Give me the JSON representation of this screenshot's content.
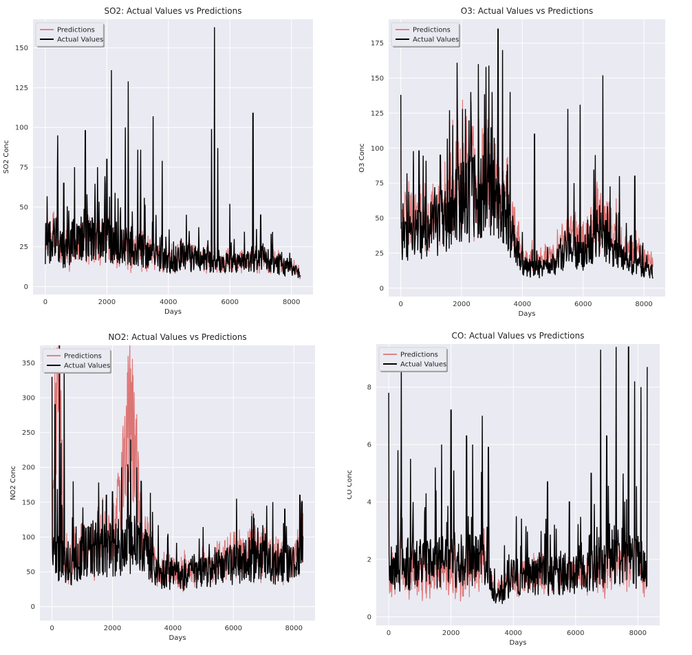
{
  "colors": {
    "predictions": "#d9605f",
    "actual": "#000000",
    "plot_bg": "#eaeaf2",
    "grid": "#ffffff"
  },
  "chart_data": [
    {
      "type": "line",
      "title": "SO2: Actual Values vs Predictions",
      "xlabel": "Days",
      "ylabel": "SO2 Conc",
      "xlim": [
        -400,
        8700
      ],
      "ylim": [
        -5,
        168
      ],
      "xticks": [
        0,
        2000,
        4000,
        6000,
        8000
      ],
      "yticks": [
        0,
        25,
        50,
        75,
        100,
        125,
        150
      ],
      "legend": "top-left",
      "grid": true,
      "series": [
        {
          "name": "Predictions",
          "color": "#d9605f",
          "approx_points": [
            [
              0,
              25
            ],
            [
              200,
              30
            ],
            [
              500,
              22
            ],
            [
              1000,
              25
            ],
            [
              1500,
              26
            ],
            [
              2000,
              25
            ],
            [
              2500,
              24
            ],
            [
              3000,
              22
            ],
            [
              3500,
              18
            ],
            [
              4000,
              15
            ],
            [
              4500,
              18
            ],
            [
              5000,
              16
            ],
            [
              5500,
              15
            ],
            [
              6000,
              14
            ],
            [
              6500,
              14
            ],
            [
              7000,
              16
            ],
            [
              7500,
              14
            ],
            [
              8000,
              11
            ],
            [
              8300,
              7
            ]
          ]
        },
        {
          "name": "Actual Values",
          "color": "#000000",
          "spikes": [
            [
              400,
              95
            ],
            [
              600,
              65
            ],
            [
              950,
              75
            ],
            [
              1300,
              98
            ],
            [
              1700,
              75
            ],
            [
              2000,
              80
            ],
            [
              2150,
              136
            ],
            [
              2600,
              100
            ],
            [
              2700,
              129
            ],
            [
              3000,
              86
            ],
            [
              3100,
              86
            ],
            [
              3500,
              107
            ],
            [
              3800,
              79
            ],
            [
              5400,
              99
            ],
            [
              5500,
              163
            ],
            [
              5600,
              87
            ],
            [
              6000,
              52
            ],
            [
              6750,
              109
            ],
            [
              7000,
              45
            ]
          ],
          "baseline": [
            [
              0,
              22
            ],
            [
              300,
              28
            ],
            [
              600,
              20
            ],
            [
              1000,
              27
            ],
            [
              1500,
              28
            ],
            [
              2000,
              26
            ],
            [
              2500,
              25
            ],
            [
              3000,
              22
            ],
            [
              3500,
              18
            ],
            [
              4000,
              14
            ],
            [
              4500,
              17
            ],
            [
              5000,
              15
            ],
            [
              5500,
              15
            ],
            [
              6000,
              13
            ],
            [
              6500,
              14
            ],
            [
              7000,
              17
            ],
            [
              7500,
              13
            ],
            [
              8000,
              10
            ],
            [
              8300,
              6
            ]
          ]
        }
      ]
    },
    {
      "type": "line",
      "title": "O3: Actual Values vs Predictions",
      "xlabel": "Days",
      "ylabel": "O3 Conc",
      "xlim": [
        -400,
        8700
      ],
      "ylim": [
        -6,
        192
      ],
      "xticks": [
        0,
        2000,
        4000,
        6000,
        8000
      ],
      "yticks": [
        0,
        25,
        50,
        75,
        100,
        125,
        150,
        175
      ],
      "legend": "top-left",
      "grid": true,
      "series": [
        {
          "name": "Predictions",
          "color": "#d9605f",
          "approx_points": [
            [
              0,
              40
            ],
            [
              500,
              45
            ],
            [
              1000,
              45
            ],
            [
              1500,
              55
            ],
            [
              2000,
              70
            ],
            [
              2500,
              75
            ],
            [
              3000,
              70
            ],
            [
              3500,
              55
            ],
            [
              4000,
              20
            ],
            [
              4500,
              18
            ],
            [
              5000,
              20
            ],
            [
              5500,
              35
            ],
            [
              6000,
              30
            ],
            [
              6500,
              45
            ],
            [
              7000,
              35
            ],
            [
              7500,
              25
            ],
            [
              8000,
              20
            ],
            [
              8300,
              15
            ]
          ]
        },
        {
          "name": "Actual Values",
          "color": "#000000",
          "spikes": [
            [
              0,
              138
            ],
            [
              200,
              82
            ],
            [
              600,
              98
            ],
            [
              1300,
              95
            ],
            [
              1850,
              161
            ],
            [
              2300,
              140
            ],
            [
              2550,
              160
            ],
            [
              2800,
              158
            ],
            [
              3000,
              140
            ],
            [
              3200,
              185
            ],
            [
              3350,
              170
            ],
            [
              3600,
              140
            ],
            [
              4400,
              110
            ],
            [
              5500,
              128
            ],
            [
              5700,
              75
            ],
            [
              5900,
              131
            ],
            [
              6400,
              95
            ],
            [
              6650,
              152
            ],
            [
              7200,
              80
            ],
            [
              7700,
              80
            ]
          ],
          "baseline": [
            [
              0,
              30
            ],
            [
              500,
              35
            ],
            [
              1000,
              38
            ],
            [
              1500,
              45
            ],
            [
              2000,
              55
            ],
            [
              2500,
              60
            ],
            [
              3000,
              58
            ],
            [
              3500,
              45
            ],
            [
              4000,
              15
            ],
            [
              4500,
              12
            ],
            [
              5000,
              14
            ],
            [
              5500,
              25
            ],
            [
              6000,
              22
            ],
            [
              6500,
              35
            ],
            [
              7000,
              25
            ],
            [
              7500,
              18
            ],
            [
              8000,
              12
            ],
            [
              8300,
              10
            ]
          ]
        }
      ]
    },
    {
      "type": "line",
      "title": "NO2: Actual Values vs Predictions",
      "xlabel": "Days",
      "ylabel": "NO2 Conc",
      "xlim": [
        -400,
        8700
      ],
      "ylim": [
        -20,
        375
      ],
      "xticks": [
        0,
        2000,
        4000,
        6000,
        8000
      ],
      "yticks": [
        0,
        50,
        100,
        150,
        200,
        250,
        300,
        350
      ],
      "legend": "top-left",
      "grid": true,
      "series": [
        {
          "name": "Predictions",
          "color": "#d9605f",
          "approx_points": [
            [
              0,
              70
            ],
            [
              200,
              345
            ],
            [
              400,
              60
            ],
            [
              1000,
              75
            ],
            [
              1500,
              80
            ],
            [
              2000,
              80
            ],
            [
              2600,
              260
            ],
            [
              3000,
              90
            ],
            [
              3500,
              50
            ],
            [
              4000,
              45
            ],
            [
              4500,
              45
            ],
            [
              5000,
              50
            ],
            [
              5500,
              55
            ],
            [
              6000,
              65
            ],
            [
              6500,
              70
            ],
            [
              7000,
              65
            ],
            [
              7500,
              60
            ],
            [
              8000,
              60
            ],
            [
              8300,
              90
            ]
          ]
        },
        {
          "name": "Actual Values",
          "color": "#000000",
          "spikes": [
            [
              0,
              330
            ],
            [
              100,
              290
            ],
            [
              250,
              375
            ],
            [
              300,
              235
            ],
            [
              400,
              350
            ],
            [
              700,
              180
            ],
            [
              1000,
              120
            ],
            [
              1800,
              160
            ],
            [
              2000,
              165
            ],
            [
              2300,
              200
            ],
            [
              2600,
              240
            ],
            [
              2800,
              200
            ],
            [
              2950,
              180
            ],
            [
              3300,
              100
            ],
            [
              3800,
              75
            ],
            [
              5200,
              90
            ],
            [
              6100,
              155
            ],
            [
              6600,
              130
            ],
            [
              7100,
              145
            ],
            [
              7300,
              150
            ],
            [
              7700,
              140
            ],
            [
              8200,
              160
            ]
          ],
          "baseline": [
            [
              0,
              70
            ],
            [
              300,
              60
            ],
            [
              600,
              50
            ],
            [
              1000,
              70
            ],
            [
              1500,
              75
            ],
            [
              2000,
              75
            ],
            [
              2500,
              80
            ],
            [
              3000,
              80
            ],
            [
              3500,
              45
            ],
            [
              4000,
              40
            ],
            [
              4500,
              40
            ],
            [
              5000,
              45
            ],
            [
              5500,
              48
            ],
            [
              6000,
              55
            ],
            [
              6500,
              60
            ],
            [
              7000,
              58
            ],
            [
              7500,
              55
            ],
            [
              8000,
              55
            ],
            [
              8300,
              75
            ]
          ]
        }
      ]
    },
    {
      "type": "line",
      "title": "CO: Actual Values vs Predictions",
      "xlabel": "Days",
      "ylabel": "CO Conc",
      "xlim": [
        -400,
        8700
      ],
      "ylim": [
        -0.3,
        9.5
      ],
      "xticks": [
        0,
        2000,
        4000,
        6000,
        8000
      ],
      "yticks": [
        0,
        2,
        4,
        6,
        8
      ],
      "legend": "top-left",
      "grid": true,
      "series": [
        {
          "name": "Predictions",
          "color": "#d9605f",
          "approx_points": [
            [
              0,
              1.5
            ],
            [
              500,
              1.3
            ],
            [
              1000,
              1.2
            ],
            [
              1500,
              1.2
            ],
            [
              2000,
              1.3
            ],
            [
              2500,
              1.3
            ],
            [
              3000,
              1.5
            ],
            [
              3100,
              2.2
            ],
            [
              3300,
              1.0
            ],
            [
              3500,
              0.8
            ],
            [
              4000,
              1.2
            ],
            [
              4500,
              1.3
            ],
            [
              5000,
              1.3
            ],
            [
              5500,
              1.3
            ],
            [
              6000,
              1.3
            ],
            [
              6500,
              1.4
            ],
            [
              7000,
              1.5
            ],
            [
              7500,
              1.6
            ],
            [
              8000,
              1.5
            ],
            [
              8300,
              1.4
            ]
          ]
        },
        {
          "name": "Actual Values",
          "color": "#000000",
          "spikes": [
            [
              0,
              7.8
            ],
            [
              300,
              5.8
            ],
            [
              400,
              9.0
            ],
            [
              700,
              5.5
            ],
            [
              1200,
              4.3
            ],
            [
              1500,
              5.2
            ],
            [
              1700,
              6.0
            ],
            [
              2000,
              7.2
            ],
            [
              2500,
              6.3
            ],
            [
              2700,
              6.0
            ],
            [
              3000,
              7.0
            ],
            [
              3200,
              5.9
            ],
            [
              4100,
              3.5
            ],
            [
              5100,
              4.7
            ],
            [
              5800,
              4.0
            ],
            [
              6500,
              5.0
            ],
            [
              6800,
              9.3
            ],
            [
              7000,
              6.3
            ],
            [
              7300,
              9.4
            ],
            [
              7700,
              9.4
            ],
            [
              7900,
              8.2
            ],
            [
              8100,
              8.0
            ],
            [
              8300,
              8.7
            ]
          ],
          "baseline": [
            [
              0,
              1.5
            ],
            [
              500,
              1.6
            ],
            [
              1000,
              1.7
            ],
            [
              1500,
              1.7
            ],
            [
              2000,
              1.8
            ],
            [
              2500,
              1.8
            ],
            [
              3000,
              1.8
            ],
            [
              3300,
              1.0
            ],
            [
              3500,
              0.6
            ],
            [
              4000,
              1.2
            ],
            [
              4500,
              1.3
            ],
            [
              5000,
              1.3
            ],
            [
              5500,
              1.3
            ],
            [
              6000,
              1.3
            ],
            [
              6500,
              1.5
            ],
            [
              7000,
              1.8
            ],
            [
              7500,
              1.9
            ],
            [
              8000,
              1.7
            ],
            [
              8300,
              1.5
            ]
          ]
        }
      ]
    }
  ]
}
